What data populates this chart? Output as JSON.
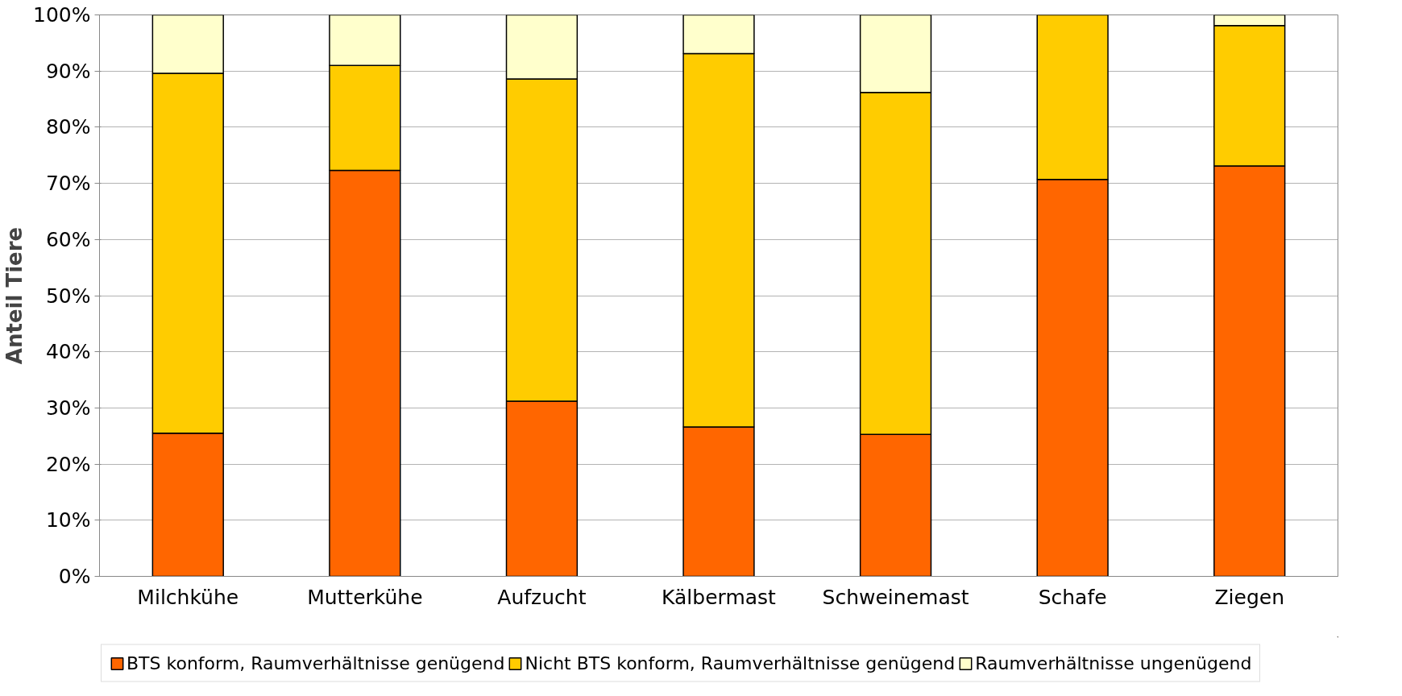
{
  "chart_data": {
    "type": "bar",
    "stacked": true,
    "ylabel": "Anteil Tiere",
    "categories": [
      "Milchkühe",
      "Mutterkühe",
      "Aufzucht",
      "Kälbermast",
      "Schweinemast",
      "Schafe",
      "Ziegen"
    ],
    "series": [
      {
        "name": "BTS konform, Raumverhältnisse genügend",
        "color": "#ff6600",
        "values": [
          25.5,
          72.3,
          31.2,
          26.6,
          25.3,
          70.7,
          73.1
        ]
      },
      {
        "name": "Nicht BTS konform, Raumverhältnisse genügend",
        "color": "#ffcc00",
        "values": [
          64.1,
          18.7,
          57.4,
          66.5,
          60.9,
          29.3,
          25.0
        ]
      },
      {
        "name": "Raumverhältnisse ungenügend",
        "color": "#ffffcc",
        "values": [
          10.4,
          9.0,
          11.4,
          6.9,
          13.8,
          0,
          1.9
        ]
      }
    ],
    "ylim": [
      0,
      100
    ],
    "yticks": [
      {
        "value": 0,
        "label": "0%"
      },
      {
        "value": 10,
        "label": "10%"
      },
      {
        "value": 20,
        "label": "20%"
      },
      {
        "value": 30,
        "label": "30%"
      },
      {
        "value": 40,
        "label": "40%"
      },
      {
        "value": 50,
        "label": "50%"
      },
      {
        "value": 60,
        "label": "60%"
      },
      {
        "value": 70,
        "label": "70%"
      },
      {
        "value": 80,
        "label": "80%"
      },
      {
        "value": 90,
        "label": "90%"
      },
      {
        "value": 100,
        "label": "100%"
      }
    ],
    "grid": "y",
    "legend": "bottom"
  }
}
